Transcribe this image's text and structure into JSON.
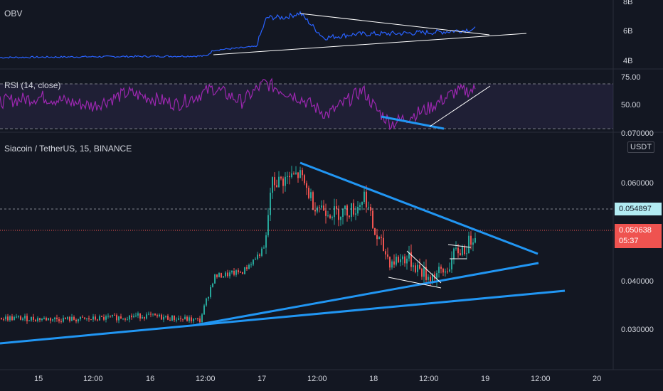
{
  "panels": {
    "obv": {
      "title": "OBV",
      "ticks": [
        "8B",
        "6B",
        "4B"
      ]
    },
    "rsi": {
      "title": "RSI (14, close)",
      "ticks": [
        "75.00",
        "50.00",
        "0.070000"
      ]
    },
    "main": {
      "title": "Siacoin / TetherUS, 15, BINANCE",
      "currency": "USDT",
      "ticks": [
        "0.060000",
        "0.040000",
        "0.030000"
      ],
      "last_price": "0.050638",
      "countdown": "05:37",
      "marker_price": "0.054897"
    }
  },
  "time_axis": [
    "15",
    "12:00",
    "16",
    "12:00",
    "17",
    "12:00",
    "18",
    "12:00",
    "19",
    "12:00",
    "20"
  ],
  "colors": {
    "background": "#131722",
    "up_candle": "#26a69a",
    "down_candle": "#ef5350",
    "trendline": "#2196f3",
    "obv_line": "#2962ff",
    "rsi_line": "#9c27b0",
    "rsi_band": "#7e57c2",
    "last_price_tag": "#ef5350",
    "marker_tag": "#b2ebf2"
  },
  "chart_data": [
    {
      "type": "line",
      "title": "OBV",
      "ylim": [
        3.5,
        8
      ],
      "y_unit": "B",
      "x": [
        "15",
        "16",
        "17",
        "18",
        "19"
      ],
      "series": [
        {
          "name": "OBV",
          "values": [
            4.4,
            4.5,
            7.0,
            5.8,
            6.2
          ]
        }
      ]
    },
    {
      "type": "line",
      "title": "RSI (14, close)",
      "ylim": [
        20,
        80
      ],
      "bands": [
        30,
        70
      ],
      "series": [
        {
          "name": "RSI",
          "values": [
            55,
            58,
            52,
            60,
            50,
            48,
            66,
            74,
            55,
            40,
            32,
            45,
            70,
            52
          ]
        }
      ]
    },
    {
      "type": "line",
      "title": "Siacoin / TetherUS, 15, BINANCE",
      "ylim": [
        0.026,
        0.072
      ],
      "last_price": 0.050638,
      "marker_price": 0.054897,
      "x": [
        "15",
        "12:00",
        "16",
        "12:00",
        "17",
        "12:00",
        "18",
        "12:00",
        "19"
      ],
      "series": [
        {
          "name": "close",
          "values": [
            0.0325,
            0.032,
            0.033,
            0.032,
            0.06,
            0.056,
            0.052,
            0.042,
            0.0505
          ]
        }
      ]
    }
  ]
}
